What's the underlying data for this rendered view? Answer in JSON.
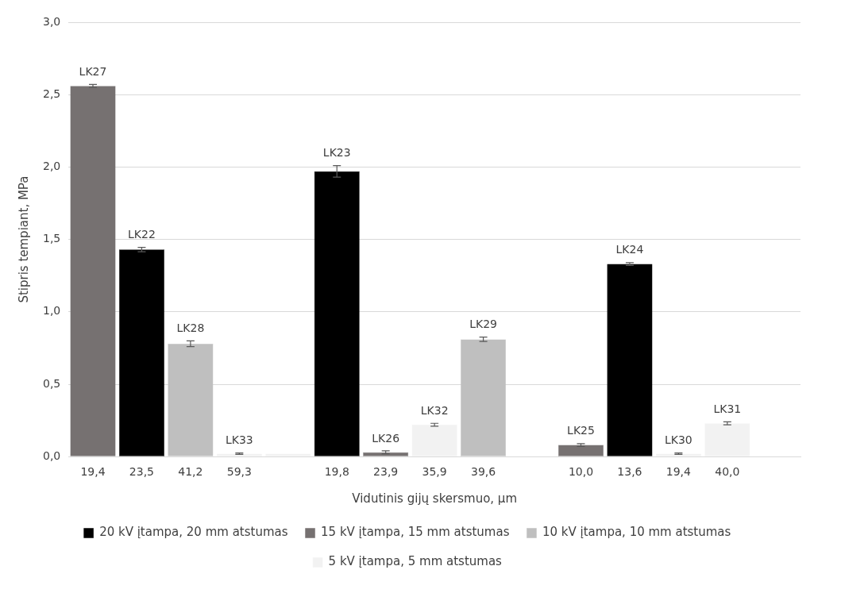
{
  "chart_data": {
    "type": "bar",
    "xlabel": "Vidutinis gijų skersmuo, μm",
    "ylabel": "Stipris tempiant, MPa",
    "categories": [
      "19,4",
      "23,5",
      "41,2",
      "59,3",
      null,
      "19,8",
      "23,9",
      "35,9",
      "39,6",
      null,
      "10,0",
      "13,6",
      "19,4",
      "40,0",
      null
    ],
    "series": [
      {
        "name": "20 kV įtampa, 20 mm atstumas",
        "color": "#000000",
        "values": [
          null,
          1.43,
          null,
          null,
          null,
          1.97,
          null,
          null,
          null,
          null,
          null,
          1.33,
          null,
          null,
          null
        ],
        "errors": [
          null,
          0.015,
          null,
          null,
          null,
          0.04,
          null,
          null,
          null,
          null,
          null,
          0.01,
          null,
          null,
          null
        ],
        "value_labels": [
          null,
          "LK22",
          null,
          null,
          null,
          "LK23",
          null,
          null,
          null,
          null,
          null,
          "LK24",
          null,
          null,
          null
        ]
      },
      {
        "name": "15 kV įtampa, 15 mm atstumas",
        "color": "#767171",
        "values": [
          2.56,
          null,
          null,
          null,
          null,
          null,
          0.03,
          null,
          null,
          null,
          0.08,
          null,
          null,
          null,
          null
        ],
        "errors": [
          0.01,
          null,
          null,
          null,
          null,
          null,
          0.01,
          null,
          null,
          null,
          0.01,
          null,
          null,
          null,
          null
        ],
        "value_labels": [
          "LK27",
          null,
          null,
          null,
          null,
          null,
          "LK26",
          null,
          null,
          null,
          "LK25",
          null,
          null,
          null,
          null
        ]
      },
      {
        "name": "10 kV įtampa, 10 mm atstumas",
        "color": "#bfbfbf",
        "values": [
          null,
          null,
          0.78,
          null,
          null,
          null,
          null,
          null,
          0.81,
          null,
          null,
          null,
          null,
          null,
          null
        ],
        "errors": [
          null,
          null,
          0.02,
          null,
          null,
          null,
          null,
          null,
          0.015,
          null,
          null,
          null,
          null,
          null,
          null
        ],
        "value_labels": [
          null,
          null,
          "LK28",
          null,
          null,
          null,
          null,
          null,
          "LK29",
          null,
          null,
          null,
          null,
          null,
          null
        ]
      },
      {
        "name": "5 kV įtampa, 5 mm atstumas",
        "color": "#f2f2f2",
        "values": [
          null,
          null,
          null,
          0.02,
          0.02,
          null,
          null,
          0.22,
          null,
          null,
          null,
          null,
          0.02,
          0.23,
          null
        ],
        "errors": [
          null,
          null,
          null,
          0.005,
          null,
          null,
          null,
          0.01,
          null,
          null,
          null,
          null,
          0.005,
          0.01,
          null
        ],
        "value_labels": [
          null,
          null,
          null,
          "LK33",
          null,
          null,
          null,
          "LK32",
          null,
          null,
          null,
          null,
          "LK30",
          "LK31",
          null
        ]
      }
    ],
    "ylim": [
      0,
      3
    ],
    "yticks": [
      {
        "value": 0,
        "label": "0,0"
      },
      {
        "value": 0.5,
        "label": "0,5"
      },
      {
        "value": 1,
        "label": "1,0"
      },
      {
        "value": 1.5,
        "label": "1,5"
      },
      {
        "value": 2,
        "label": "2,0"
      },
      {
        "value": 2.5,
        "label": "2,5"
      },
      {
        "value": 3,
        "label": "3,0"
      }
    ],
    "grid": "y",
    "legend": "bottom"
  }
}
